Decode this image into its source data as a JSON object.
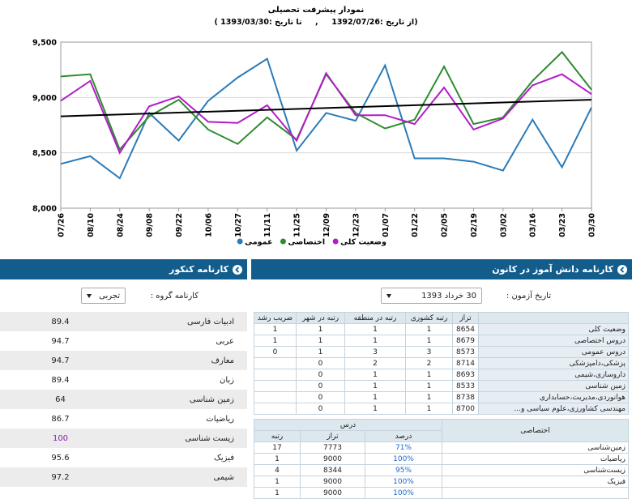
{
  "chart_data": {
    "type": "line",
    "title": "نمودار پیشرفت تحصیلی",
    "subtitle": "(از تاریخ :1392/07/26     ,     تا تاریخ :1393/03/30 )",
    "categories": [
      "07/26",
      "08/10",
      "08/24",
      "09/08",
      "09/22",
      "10/06",
      "10/27",
      "11/11",
      "11/25",
      "12/09",
      "12/23",
      "01/07",
      "01/22",
      "02/05",
      "02/19",
      "03/02",
      "03/16",
      "03/23",
      "03/30"
    ],
    "series": [
      {
        "name": "عمومی",
        "color": "#2b7bb9",
        "values": [
          8400,
          8470,
          8270,
          8860,
          8610,
          8970,
          9180,
          9350,
          8520,
          8860,
          8790,
          9290,
          8450,
          8450,
          8420,
          8340,
          8800,
          8370,
          8910
        ]
      },
      {
        "name": "اختصاصی",
        "color": "#2e8b2e",
        "values": [
          9190,
          9210,
          8530,
          8830,
          8980,
          8710,
          8580,
          8820,
          8620,
          9210,
          8860,
          8720,
          8800,
          9280,
          8760,
          8820,
          9150,
          9410,
          9070
        ]
      },
      {
        "name": "وضعیت کلی",
        "color": "#b21cc8",
        "values": [
          8970,
          9150,
          8500,
          8920,
          9010,
          8780,
          8770,
          8930,
          8610,
          9220,
          8840,
          8840,
          8760,
          9090,
          8710,
          8810,
          9110,
          9210,
          9030
        ]
      }
    ],
    "trendline": {
      "color": "#000000",
      "values": [
        8830,
        8980
      ]
    },
    "ylim": [
      8000,
      9500
    ],
    "yticks": [
      {
        "value": 8000,
        "label": "8,000"
      },
      {
        "value": 8500,
        "label": "8,500"
      },
      {
        "value": 9000,
        "label": "9,000"
      },
      {
        "value": 9500,
        "label": "9,500"
      }
    ],
    "grid": true,
    "legend": "bottom"
  },
  "exam_report": {
    "title": "کارنامه دانش آموز در کانون",
    "date_label": "تاریخ آزمون :",
    "date_value": "30 خرداد 1393",
    "summary_table": {
      "columns": [
        "تراز",
        "رتبه کشوری",
        "رتبه در منطقه",
        "رتبه در شهر",
        "ضریب رشد"
      ],
      "rows": [
        {
          "label": "وضعیت کلی",
          "cells": [
            8654,
            1,
            1,
            1,
            1
          ]
        },
        {
          "label": "دروس اختصاصی",
          "cells": [
            8679,
            1,
            1,
            1,
            1
          ]
        },
        {
          "label": "دروس عمومی",
          "cells": [
            8573,
            3,
            3,
            1,
            0
          ]
        },
        {
          "label": "پزشکی،دامپزشکی",
          "cells": [
            8714,
            2,
            2,
            0,
            null
          ]
        },
        {
          "label": "داروسازی،شیمی",
          "cells": [
            8693,
            1,
            1,
            0,
            null
          ]
        },
        {
          "label": "زمین شناسی",
          "cells": [
            8533,
            1,
            1,
            0,
            null
          ]
        },
        {
          "label": "هوانوردی،مدیریت،حسابداری",
          "cells": [
            8738,
            1,
            1,
            0,
            null
          ]
        },
        {
          "label": "مهندسی کشاورزی،علوم سیاسی و...",
          "cells": [
            8700,
            1,
            1,
            0,
            null
          ]
        }
      ]
    },
    "lessons_table": {
      "side_header": "اختصاصی",
      "group_header": "درس",
      "columns": [
        "درصد",
        "تراز",
        "رتبه"
      ],
      "rows": [
        {
          "label": "زمین‌شناسی",
          "cells": [
            "71%",
            7773,
            17
          ]
        },
        {
          "label": "ریاضیات",
          "cells": [
            "100%",
            9000,
            1
          ]
        },
        {
          "label": "زیست‌شناسی",
          "cells": [
            "95%",
            8344,
            4
          ]
        },
        {
          "label": "فیزیک",
          "cells": [
            "100%",
            9000,
            1
          ]
        },
        {
          "label": null,
          "cells": [
            "100%",
            9000,
            1
          ]
        }
      ]
    }
  },
  "konkur_report": {
    "title": "کارنامه کنکور",
    "group_label": "کارنامه گروه :",
    "group_value": "تجربی",
    "rows": [
      {
        "subject": "ادبیات فارسی",
        "score": 89.4
      },
      {
        "subject": "عربی",
        "score": 94.7
      },
      {
        "subject": "معارف",
        "score": 94.7
      },
      {
        "subject": "زبان",
        "score": 89.4
      },
      {
        "subject": "زمین شناسی",
        "score": 64
      },
      {
        "subject": "ریاضیات",
        "score": 86.7
      },
      {
        "subject": "زیست شناسی",
        "score": 100
      },
      {
        "subject": "فیزیک",
        "score": 95.6
      },
      {
        "subject": "شیمی",
        "score": 97.2
      }
    ]
  }
}
